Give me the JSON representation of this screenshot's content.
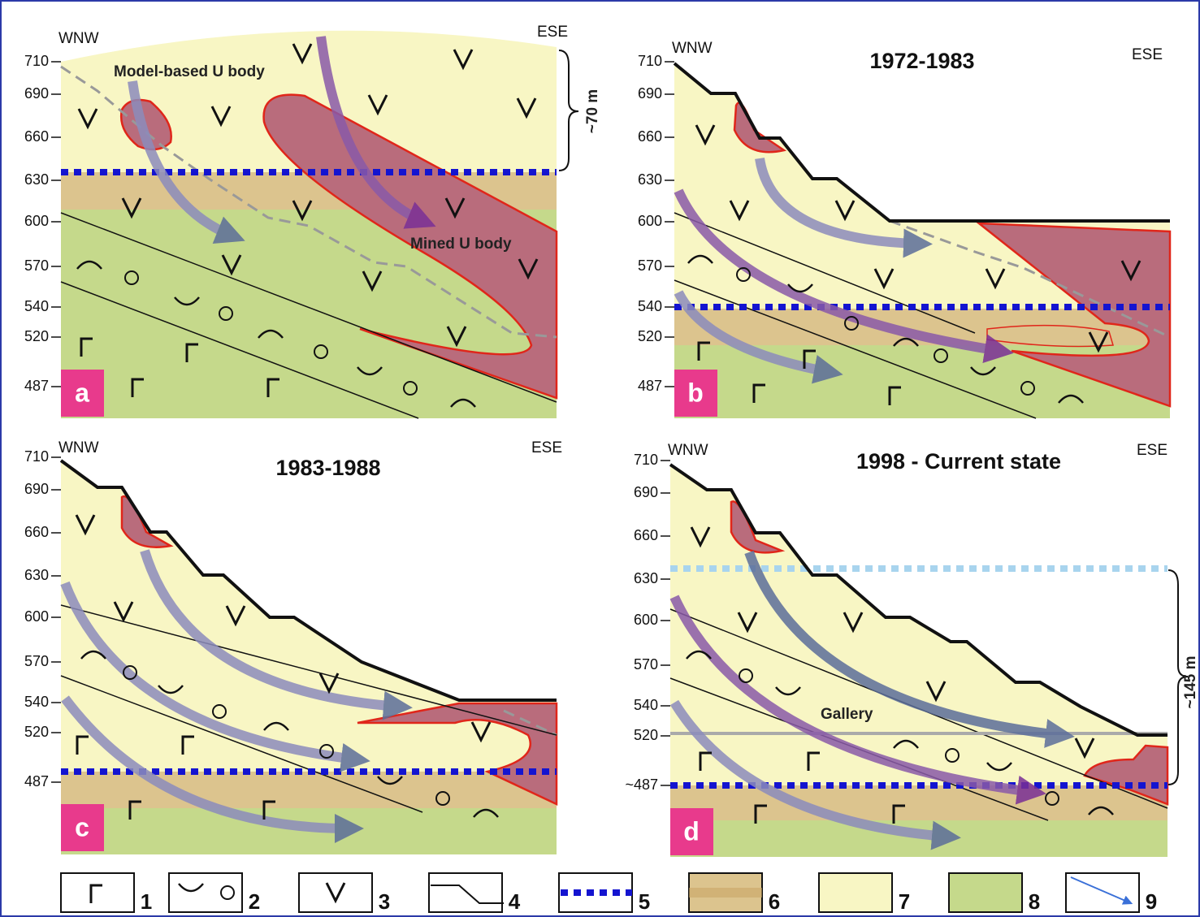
{
  "panels": [
    {
      "label": "a",
      "left": "WNW",
      "right": "ESE",
      "elevations": [
        710,
        690,
        660,
        630,
        600,
        570,
        540,
        520,
        487
      ],
      "annotations": [
        "Model-based U body",
        "Mined U body",
        "~70 m"
      ]
    },
    {
      "label": "b",
      "title": "1972-1983",
      "left": "WNW",
      "right": "ESE",
      "elevations": [
        710,
        690,
        660,
        630,
        600,
        570,
        540,
        520,
        487
      ]
    },
    {
      "label": "c",
      "title": "1983-1988",
      "left": "WNW",
      "right": "ESE",
      "elevations": [
        710,
        690,
        660,
        630,
        600,
        570,
        540,
        520,
        487
      ]
    },
    {
      "label": "d",
      "title": "1998 - Current state",
      "left": "WNW",
      "right": "ESE",
      "elevations": [
        710,
        690,
        660,
        630,
        600,
        570,
        540,
        520,
        "~487"
      ],
      "annotations": [
        "Gallery",
        "~145 m"
      ]
    }
  ],
  "legend": [
    "1",
    "2",
    "3",
    "4",
    "5",
    "6",
    "7",
    "8",
    "9"
  ]
}
